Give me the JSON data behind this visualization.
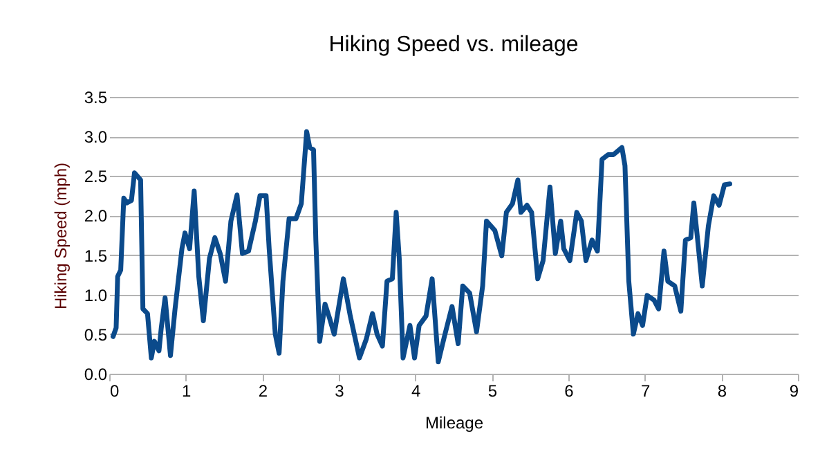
{
  "chart_data": {
    "type": "line",
    "title": "Hiking Speed vs. mileage",
    "xlabel": "Mileage",
    "ylabel": "Hiking Speed (mph)",
    "x": [
      0.05,
      0.09,
      0.11,
      0.15,
      0.19,
      0.23,
      0.29,
      0.33,
      0.41,
      0.44,
      0.5,
      0.55,
      0.59,
      0.65,
      0.68,
      0.73,
      0.8,
      0.86,
      0.95,
      0.99,
      1.05,
      1.11,
      1.17,
      1.23,
      1.31,
      1.38,
      1.45,
      1.52,
      1.59,
      1.67,
      1.74,
      1.82,
      1.91,
      1.97,
      2.05,
      2.09,
      2.17,
      2.22,
      2.27,
      2.35,
      2.44,
      2.51,
      2.58,
      2.62,
      2.67,
      2.7,
      2.75,
      2.82,
      2.88,
      2.94,
      3.06,
      3.15,
      3.27,
      3.36,
      3.44,
      3.5,
      3.57,
      3.63,
      3.7,
      3.75,
      3.79,
      3.84,
      3.93,
      3.99,
      4.05,
      4.14,
      4.22,
      4.3,
      4.38,
      4.48,
      4.56,
      4.62,
      4.71,
      4.8,
      4.88,
      4.93,
      5.04,
      5.13,
      5.19,
      5.27,
      5.34,
      5.38,
      5.46,
      5.52,
      5.6,
      5.67,
      5.76,
      5.83,
      5.9,
      5.94,
      6.02,
      6.11,
      6.17,
      6.23,
      6.31,
      6.38,
      6.44,
      6.52,
      6.59,
      6.7,
      6.74,
      6.79,
      6.85,
      6.91,
      6.97,
      7.03,
      7.12,
      7.18,
      7.25,
      7.3,
      7.39,
      7.47,
      7.53,
      7.6,
      7.64,
      7.69,
      7.75,
      7.83,
      7.9,
      7.97,
      8.04,
      8.11
    ],
    "series": [
      {
        "color": "#0b4a8b",
        "values": [
          0.47,
          0.58,
          1.23,
          1.31,
          2.22,
          2.16,
          2.19,
          2.54,
          2.45,
          0.82,
          0.76,
          0.2,
          0.41,
          0.29,
          0.58,
          0.96,
          0.23,
          0.82,
          1.58,
          1.78,
          1.58,
          2.31,
          1.23,
          0.67,
          1.46,
          1.72,
          1.52,
          1.17,
          1.93,
          2.26,
          1.52,
          1.55,
          1.93,
          2.25,
          2.25,
          1.58,
          0.5,
          0.26,
          1.17,
          1.96,
          1.96,
          2.15,
          3.06,
          2.86,
          2.83,
          1.69,
          0.41,
          0.88,
          0.7,
          0.5,
          1.2,
          0.73,
          0.2,
          0.44,
          0.76,
          0.5,
          0.35,
          1.17,
          1.2,
          2.04,
          1.46,
          0.2,
          0.61,
          0.2,
          0.61,
          0.73,
          1.2,
          0.15,
          0.47,
          0.85,
          0.38,
          1.11,
          1.02,
          0.53,
          1.11,
          1.93,
          1.81,
          1.49,
          2.04,
          2.15,
          2.45,
          2.04,
          2.13,
          2.04,
          1.2,
          1.43,
          2.36,
          1.52,
          1.93,
          1.58,
          1.43,
          2.04,
          1.93,
          1.43,
          1.69,
          1.55,
          2.71,
          2.77,
          2.77,
          2.86,
          2.63,
          1.17,
          0.5,
          0.76,
          0.61,
          0.99,
          0.93,
          0.82,
          1.55,
          1.17,
          1.11,
          0.79,
          1.69,
          1.72,
          2.16,
          1.69,
          1.11,
          1.87,
          2.25,
          2.13,
          2.39,
          2.4
        ]
      }
    ],
    "xlim": [
      0,
      9
    ],
    "xticks": [
      0,
      1,
      2,
      3,
      4,
      5,
      6,
      7,
      8,
      9
    ],
    "ylim": [
      0,
      3.5
    ],
    "yticks": [
      {
        "value": 0,
        "label": "0.0"
      },
      {
        "value": 0.5,
        "label": "0.5"
      },
      {
        "value": 1,
        "label": "1.0"
      },
      {
        "value": 1.5,
        "label": "1.5"
      },
      {
        "value": 2,
        "label": "2.0"
      },
      {
        "value": 2.5,
        "label": "2.5"
      },
      {
        "value": 3,
        "label": "3.0"
      },
      {
        "value": 3.5,
        "label": "3.5"
      }
    ],
    "grid": "y",
    "marker": "none",
    "line_style": "solid"
  }
}
